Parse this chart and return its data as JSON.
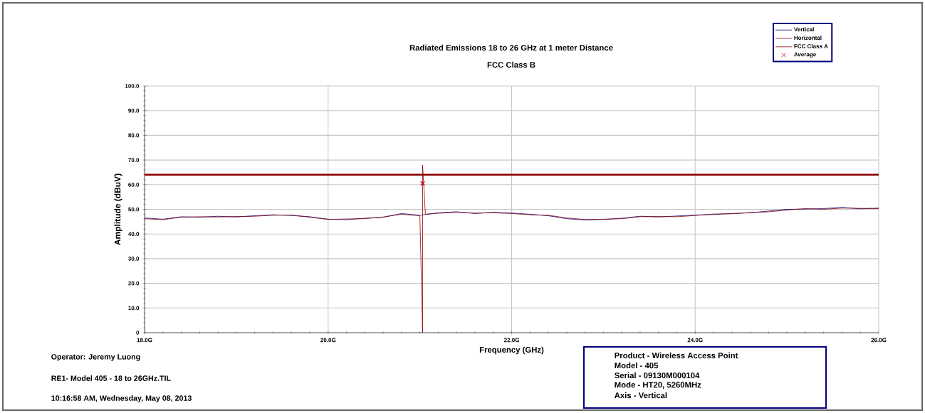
{
  "chart_data": {
    "type": "line",
    "title": "Radiated Emissions 18 to 26 GHz at 1 meter Distance",
    "subtitle": "FCC Class B",
    "xlabel": "Frequency (GHz)",
    "ylabel": "Amplitude (dBuV)",
    "xlim": [
      18,
      26
    ],
    "ylim": [
      0,
      100
    ],
    "xticks": [
      {
        "value": 18,
        "label": "18.0G"
      },
      {
        "value": 20,
        "label": "20.0G"
      },
      {
        "value": 22,
        "label": "22.0G"
      },
      {
        "value": 24,
        "label": "24.0G"
      },
      {
        "value": 26,
        "label": "26.0G"
      }
    ],
    "yticks": [
      0,
      {
        "value": 10,
        "label": "10.0"
      },
      {
        "value": 20,
        "label": "20.0"
      },
      {
        "value": 30,
        "label": "30.0"
      },
      {
        "value": 40,
        "label": "40.0"
      },
      {
        "value": 50,
        "label": "50.0"
      },
      {
        "value": 60,
        "label": "60.0"
      },
      {
        "value": 70,
        "label": "70.0"
      },
      {
        "value": 80,
        "label": "80.0"
      },
      {
        "value": 90,
        "label": "90.0"
      },
      {
        "value": 100,
        "label": "100.0"
      }
    ],
    "grid": true,
    "legend": "top right",
    "ref_lines": [
      {
        "axis": "y",
        "value": 64,
        "label": "FCC Class A",
        "color": "#8b0000"
      }
    ],
    "series": [
      {
        "name": "Vertical",
        "color": "#00008b",
        "marker": "none",
        "x": [
          18.0,
          18.2,
          18.4,
          18.6,
          18.8,
          19.0,
          19.2,
          19.4,
          19.6,
          19.8,
          20.0,
          20.2,
          20.4,
          20.6,
          20.8,
          21.0,
          21.2,
          21.4,
          21.6,
          21.8,
          22.0,
          22.2,
          22.4,
          22.6,
          22.8,
          23.0,
          23.2,
          23.4,
          23.6,
          23.8,
          24.0,
          24.2,
          24.4,
          24.6,
          24.8,
          25.0,
          25.2,
          25.4,
          25.6,
          25.8,
          26.0
        ],
        "values": [
          46.5,
          46.0,
          47.0,
          46.8,
          47.2,
          46.9,
          47.4,
          47.8,
          47.5,
          47.0,
          46.0,
          45.8,
          46.4,
          46.8,
          48.3,
          47.6,
          48.6,
          49.0,
          48.3,
          48.8,
          48.5,
          48.0,
          47.4,
          46.2,
          45.7,
          45.9,
          46.4,
          47.2,
          46.9,
          47.3,
          47.7,
          47.9,
          48.3,
          48.6,
          49.3,
          50.0,
          50.1,
          50.3,
          50.8,
          50.2,
          50.5
        ]
      },
      {
        "name": "Horizontal",
        "color": "#8b0000",
        "marker": "none",
        "x": [
          18.0,
          18.2,
          18.4,
          18.6,
          18.8,
          19.0,
          19.2,
          19.4,
          19.6,
          19.8,
          20.0,
          20.2,
          20.4,
          20.6,
          20.8,
          21.0,
          21.03,
          21.03,
          21.06,
          21.2,
          21.4,
          21.6,
          21.8,
          22.0,
          22.2,
          22.4,
          22.6,
          22.8,
          23.0,
          23.2,
          23.4,
          23.6,
          23.8,
          24.0,
          24.2,
          24.4,
          24.6,
          24.8,
          25.0,
          25.2,
          25.4,
          25.6,
          25.8,
          26.0
        ],
        "values": [
          46.2,
          45.8,
          46.8,
          47.0,
          46.9,
          47.1,
          47.2,
          47.6,
          47.7,
          46.8,
          45.9,
          46.1,
          46.2,
          46.9,
          48.0,
          47.4,
          0,
          68,
          48.0,
          48.4,
          48.8,
          48.5,
          48.6,
          48.3,
          47.8,
          47.6,
          46.5,
          45.9,
          46.0,
          46.2,
          47.0,
          47.1,
          47.0,
          47.5,
          48.1,
          48.2,
          48.7,
          49.0,
          49.7,
          50.3,
          50.0,
          50.5,
          50.4,
          50.3
        ]
      },
      {
        "name": "Average",
        "type": "scatter",
        "color": "#c00000",
        "marker": "cross",
        "x": [
          21.03
        ],
        "values": [
          60.5
        ]
      }
    ],
    "annotations": [
      "Operator: Jeremy Luong",
      "RE1- Model 405 - 18 to 26GHz.TIL",
      "10:16:58 AM, Wednesday, May 08, 2013",
      "Product - Wireless Access Point",
      "Model - 405",
      "Serial - 09130M000104",
      "Mode - HT20, 5260MHz",
      "Axis - Vertical"
    ]
  }
}
